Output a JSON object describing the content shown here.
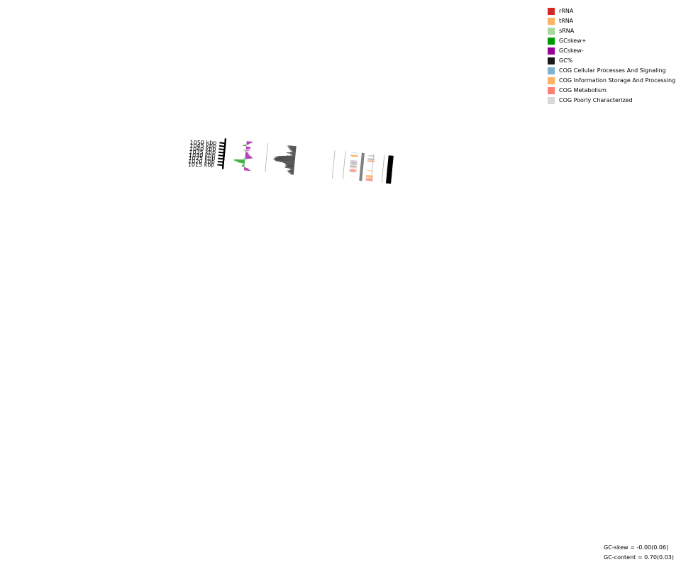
{
  "legend": [
    {
      "label": "rRNA",
      "color": "#d62728"
    },
    {
      "label": "tRNA",
      "color": "#fdb462"
    },
    {
      "label": "sRNA",
      "color": "#a6d99a"
    },
    {
      "label": "GCskew+",
      "color": "#009900"
    },
    {
      "label": "GCskew-",
      "color": "#990099"
    },
    {
      "label": "GC%",
      "color": "#1a1a1a"
    },
    {
      "label": "COG Cellular Processes And Signaling",
      "color": "#80b1d3"
    },
    {
      "label": "COG Information Storage And Processing",
      "color": "#fdb462"
    },
    {
      "label": "COG Metabolism",
      "color": "#fb8072"
    },
    {
      "label": "COG Poorly Characterized",
      "color": "#d9d9d9"
    }
  ],
  "colors": {
    "gc_content": "#1a1a1a",
    "skew_pos": "#009900",
    "skew_neg": "#990099",
    "metabolism": "#fb8072",
    "info": "#fdb462",
    "cellular": "#80b1d3",
    "poorly": "#bdbdbd",
    "backbone": "#808080",
    "guide": "#b0b0b0"
  },
  "axis": {
    "ticks_kbp": [
      1015,
      1020,
      1025,
      1030,
      1035,
      1040,
      1045,
      1050
    ],
    "tick_suffix": " kbp"
  },
  "stats": {
    "gc_skew": "GC-skew = -0.00(0.06)",
    "gc_content": "GC-content = 0.70(0.03)"
  },
  "chart_data": {
    "type": "circular-genome-map-segment",
    "range_kbp": [
      1011,
      1056
    ],
    "gc_content_profile": [
      {
        "kbp": 1011.0,
        "v": 0.3
      },
      {
        "kbp": 1013.0,
        "v": 0.55
      },
      {
        "kbp": 1015.0,
        "v": 0.7
      },
      {
        "kbp": 1016.5,
        "v": 0.55
      },
      {
        "kbp": 1018.0,
        "v": 0.35
      },
      {
        "kbp": 1019.5,
        "v": 0.5
      },
      {
        "kbp": 1020.5,
        "v": 1.1
      },
      {
        "kbp": 1022.0,
        "v": 1.0
      },
      {
        "kbp": 1023.5,
        "v": 0.9
      },
      {
        "kbp": 1025.0,
        "v": 1.0
      },
      {
        "kbp": 1026.5,
        "v": 1.05
      },
      {
        "kbp": 1028.0,
        "v": 1.2
      },
      {
        "kbp": 1029.5,
        "v": 2.1
      },
      {
        "kbp": 1031.0,
        "v": 2.4
      },
      {
        "kbp": 1033.0,
        "v": 2.4
      },
      {
        "kbp": 1035.0,
        "v": 2.3
      },
      {
        "kbp": 1037.0,
        "v": 2.2
      },
      {
        "kbp": 1039.0,
        "v": 1.5
      },
      {
        "kbp": 1040.5,
        "v": 0.6
      },
      {
        "kbp": 1042.0,
        "v": 0.35
      },
      {
        "kbp": 1043.5,
        "v": 0.6
      },
      {
        "kbp": 1045.0,
        "v": 1.1
      },
      {
        "kbp": 1046.5,
        "v": 0.5
      },
      {
        "kbp": 1048.0,
        "v": 0.35
      },
      {
        "kbp": 1049.5,
        "v": 0.6
      },
      {
        "kbp": 1051.0,
        "v": 0.7
      },
      {
        "kbp": 1053.0,
        "v": 0.8
      },
      {
        "kbp": 1055.0,
        "v": 0.95
      },
      {
        "kbp": 1056.0,
        "v": 0.95
      }
    ],
    "gc_skew_profile": [
      {
        "kbp": 1011.0,
        "v": -1.2
      },
      {
        "kbp": 1012.5,
        "v": -0.9
      },
      {
        "kbp": 1014.0,
        "v": -0.7
      },
      {
        "kbp": 1015.5,
        "v": 0.4
      },
      {
        "kbp": 1017.0,
        "v": 0.5
      },
      {
        "kbp": 1019.0,
        "v": 0.3
      },
      {
        "kbp": 1020.5,
        "v": 0.0
      },
      {
        "kbp": 1021.5,
        "v": 0.9
      },
      {
        "kbp": 1023.0,
        "v": 1.6
      },
      {
        "kbp": 1024.5,
        "v": 2.2
      },
      {
        "kbp": 1025.5,
        "v": 2.3
      },
      {
        "kbp": 1026.5,
        "v": 1.5
      },
      {
        "kbp": 1027.5,
        "v": -0.6
      },
      {
        "kbp": 1028.5,
        "v": 0.6
      },
      {
        "kbp": 1029.5,
        "v": -1.0
      },
      {
        "kbp": 1030.5,
        "v": -1.5
      },
      {
        "kbp": 1032.0,
        "v": -1.3
      },
      {
        "kbp": 1033.5,
        "v": -1.0
      },
      {
        "kbp": 1035.0,
        "v": -0.8
      },
      {
        "kbp": 1036.5,
        "v": -0.7
      },
      {
        "kbp": 1038.0,
        "v": -0.3
      },
      {
        "kbp": 1039.0,
        "v": -0.5
      },
      {
        "kbp": 1040.0,
        "v": -0.5
      },
      {
        "kbp": 1041.0,
        "v": 0.7
      },
      {
        "kbp": 1042.0,
        "v": -0.6
      },
      {
        "kbp": 1043.0,
        "v": -0.9
      },
      {
        "kbp": 1044.0,
        "v": 0.5
      },
      {
        "kbp": 1045.0,
        "v": -0.9
      },
      {
        "kbp": 1046.5,
        "v": -0.7
      },
      {
        "kbp": 1048.0,
        "v": -1.0
      },
      {
        "kbp": 1049.0,
        "v": 0.9
      },
      {
        "kbp": 1050.5,
        "v": 0.4
      },
      {
        "kbp": 1052.0,
        "v": -0.5
      },
      {
        "kbp": 1053.5,
        "v": -0.6
      },
      {
        "kbp": 1055.0,
        "v": -1.1
      },
      {
        "kbp": 1056.0,
        "v": -1.1
      }
    ],
    "features": [
      {
        "kbp": 1011.0,
        "len": 0.5,
        "strand": 1,
        "cat": "info"
      },
      {
        "kbp": 1011.5,
        "len": 1.2,
        "strand": 1,
        "cat": "metabolism"
      },
      {
        "kbp": 1012.8,
        "len": 1.3,
        "strand": 1,
        "cat": "metabolism"
      },
      {
        "kbp": 1014.2,
        "len": 0.6,
        "strand": 1,
        "cat": "metabolism"
      },
      {
        "kbp": 1014.9,
        "len": 0.6,
        "strand": 1,
        "cat": "poorly"
      },
      {
        "kbp": 1015.6,
        "len": 0.5,
        "strand": 1,
        "cat": "info"
      },
      {
        "kbp": 1016.7,
        "len": 0.4,
        "strand": 1,
        "cat": "metabolism"
      },
      {
        "kbp": 1017.2,
        "len": 2.1,
        "strand": 1,
        "cat": "info"
      },
      {
        "kbp": 1019.4,
        "len": 1.3,
        "strand": 1,
        "cat": "info"
      },
      {
        "kbp": 1016.0,
        "len": 0.5,
        "strand": -1,
        "cat": "info"
      },
      {
        "kbp": 1022.8,
        "len": 0.3,
        "strand": -1,
        "cat": "poorly"
      },
      {
        "kbp": 1023.5,
        "len": 0.3,
        "strand": -1,
        "cat": "poorly"
      },
      {
        "kbp": 1023.9,
        "len": 0.8,
        "strand": -1,
        "cat": "metabolism"
      },
      {
        "kbp": 1024.8,
        "len": 0.6,
        "strand": -1,
        "cat": "metabolism"
      },
      {
        "kbp": 1025.5,
        "len": 0.8,
        "strand": -1,
        "cat": "metabolism"
      },
      {
        "kbp": 1026.4,
        "len": 1.2,
        "strand": -1,
        "cat": "metabolism"
      },
      {
        "kbp": 1027.8,
        "len": 0.9,
        "strand": 1,
        "cat": "info"
      },
      {
        "kbp": 1028.8,
        "len": 0.3,
        "strand": 1,
        "cat": "poorly"
      },
      {
        "kbp": 1029.6,
        "len": 0.6,
        "strand": -1,
        "cat": "info"
      },
      {
        "kbp": 1030.4,
        "len": 0.3,
        "strand": -1,
        "cat": "metabolism"
      },
      {
        "kbp": 1031.2,
        "len": 3.0,
        "strand": -1,
        "cat": "poorly"
      },
      {
        "kbp": 1034.3,
        "len": 0.3,
        "strand": -1,
        "cat": "info"
      },
      {
        "kbp": 1035.2,
        "len": 1.2,
        "strand": -1,
        "cat": "poorly"
      },
      {
        "kbp": 1036.6,
        "len": 1.0,
        "strand": -1,
        "cat": "poorly"
      },
      {
        "kbp": 1037.8,
        "len": 1.0,
        "strand": -1,
        "cat": "poorly"
      },
      {
        "kbp": 1038.9,
        "len": 1.3,
        "strand": -1,
        "cat": "cellular"
      },
      {
        "kbp": 1040.6,
        "len": 0.3,
        "strand": -1,
        "cat": "poorly"
      },
      {
        "kbp": 1041.2,
        "len": 0.8,
        "strand": -1,
        "cat": "metabolism"
      },
      {
        "kbp": 1042.1,
        "len": 0.8,
        "strand": -1,
        "cat": "poorly"
      },
      {
        "kbp": 1043.4,
        "len": 0.3,
        "strand": 1,
        "cat": "poorly"
      },
      {
        "kbp": 1043.8,
        "len": 1.3,
        "strand": 1,
        "cat": "metabolism"
      },
      {
        "kbp": 1045.2,
        "len": 0.7,
        "strand": 1,
        "cat": "info"
      },
      {
        "kbp": 1046.2,
        "len": 0.3,
        "strand": 1,
        "cat": "poorly"
      },
      {
        "kbp": 1046.6,
        "len": 2.0,
        "strand": 1,
        "cat": "poorly"
      },
      {
        "kbp": 1048.7,
        "len": 0.7,
        "strand": 1,
        "cat": "poorly"
      },
      {
        "kbp": 1049.1,
        "len": 2.9,
        "strand": -1,
        "cat": "info"
      },
      {
        "kbp": 1052.2,
        "len": 0.6,
        "strand": 1,
        "cat": "poorly"
      },
      {
        "kbp": 1053.0,
        "len": 0.3,
        "strand": 1,
        "cat": "poorly"
      },
      {
        "kbp": 1053.4,
        "len": 0.3,
        "strand": 1,
        "cat": "poorly"
      },
      {
        "kbp": 1053.9,
        "len": 0.8,
        "strand": 1,
        "cat": "poorly"
      },
      {
        "kbp": 1055.2,
        "len": 0.6,
        "strand": -1,
        "cat": "cellular"
      }
    ]
  }
}
